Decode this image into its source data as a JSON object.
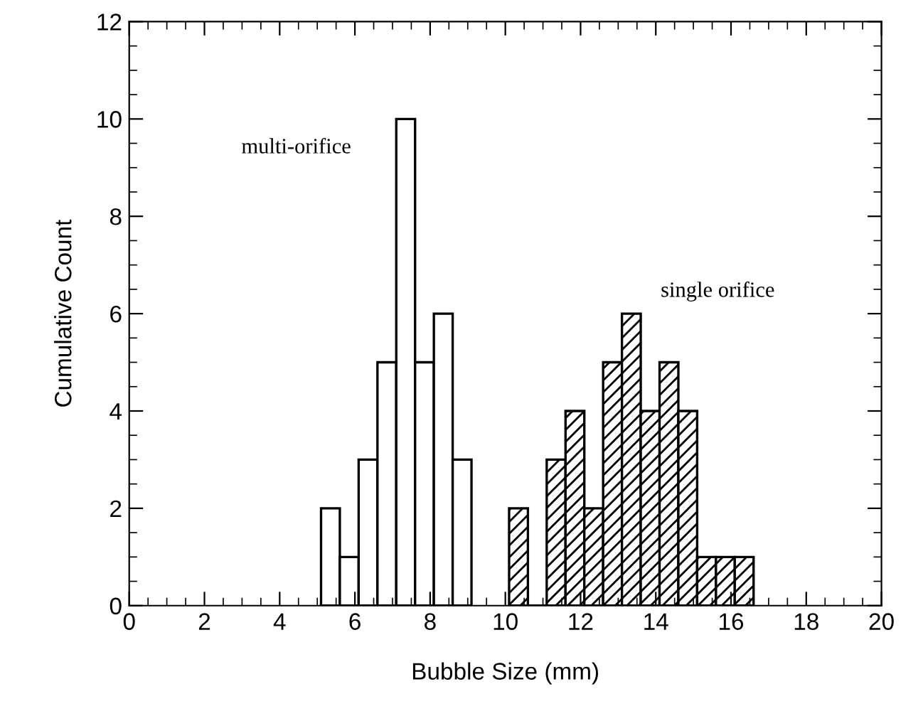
{
  "chart_data": {
    "type": "histogram",
    "xlabel": "Bubble Size (mm)",
    "ylabel": "Cumulative Count",
    "xlim": [
      0,
      20
    ],
    "xticks": [
      0,
      2,
      4,
      6,
      8,
      10,
      12,
      14,
      16,
      18,
      20
    ],
    "ylim": [
      0,
      12
    ],
    "yticks": [
      0,
      2,
      4,
      6,
      8,
      10,
      12
    ],
    "grid": false,
    "bins": [
      5.1,
      5.6,
      6.1,
      6.6,
      7.1,
      7.6,
      8.1,
      8.6,
      9.1,
      9.6,
      10.1,
      10.6,
      11.1,
      11.6,
      12.1,
      12.6,
      13.1,
      13.6,
      14.1,
      14.6,
      15.1,
      15.6,
      16.1,
      16.6
    ],
    "series": [
      {
        "name": "multi-orifice",
        "color": "#ffffff",
        "values": [
          2,
          1,
          3,
          5,
          10,
          5,
          6,
          3,
          null,
          null,
          null,
          null,
          null,
          null,
          null,
          null,
          null,
          null,
          null,
          null,
          null,
          null,
          null
        ]
      },
      {
        "name": "single orifice",
        "color": "#000000",
        "values": [
          null,
          null,
          null,
          null,
          null,
          null,
          null,
          null,
          null,
          null,
          2,
          0,
          3,
          4,
          2,
          5,
          6,
          4,
          5,
          4,
          1,
          1,
          1
        ]
      }
    ]
  }
}
